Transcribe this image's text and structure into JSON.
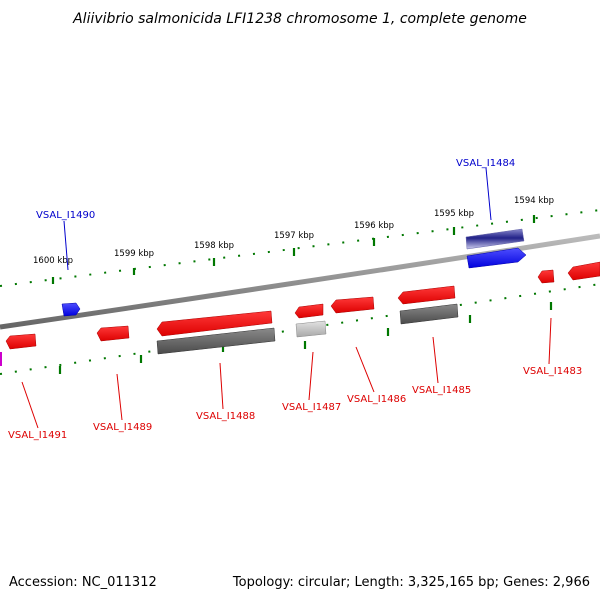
{
  "title": "Aliivibrio salmonicida LFI1238 chromosome 1, complete genome",
  "footer": {
    "accession": "Accession: NC_011312",
    "summary": "Topology: circular; Length: 3,325,165 bp; Genes: 2,966"
  },
  "colors": {
    "forward_gene": "#0000ee",
    "forward_label": "#0000cc",
    "reverse_gene": "#ee0000",
    "reverse_label": "#dd0000",
    "cds_gray": "#666666",
    "tick_green": "#007700",
    "backbone": "#888888",
    "partial_magenta": "#cc00cc"
  },
  "kbp_labels": [
    "1600 kbp",
    "1599 kbp",
    "1598 kbp",
    "1597 kbp",
    "1596 kbp",
    "1595 kbp",
    "1594 kbp"
  ],
  "gene_labels": {
    "forward": [
      "VSAL_I1490",
      "VSAL_I1484"
    ],
    "reverse": [
      "VSAL_I1491",
      "VSAL_I1489",
      "VSAL_I1488",
      "VSAL_I1487",
      "VSAL_I1486",
      "VSAL_I1485",
      "VSAL_I1483"
    ]
  }
}
